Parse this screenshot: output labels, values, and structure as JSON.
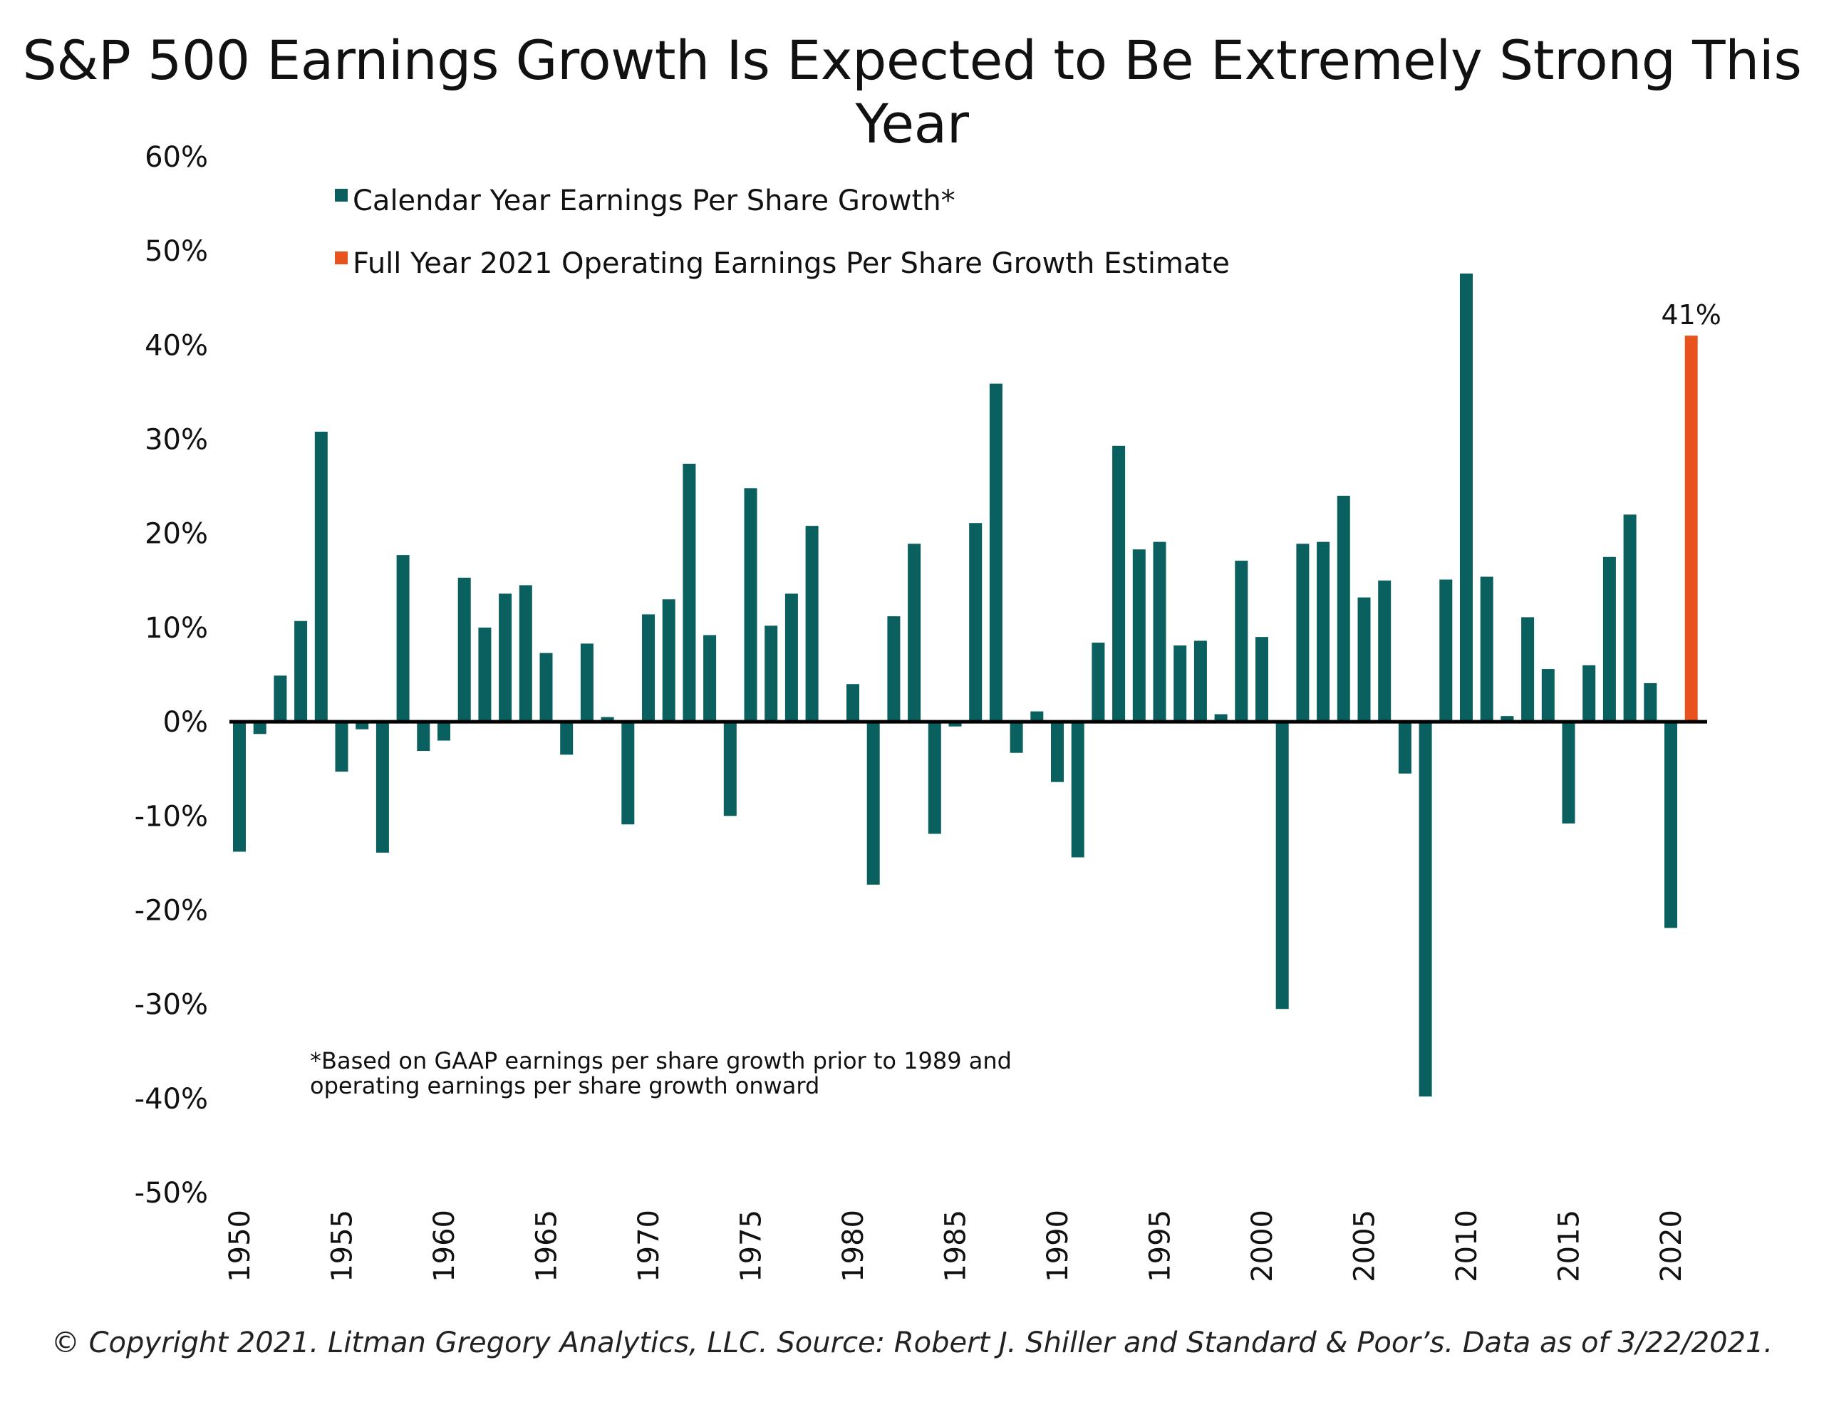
{
  "chart_data": {
    "type": "bar",
    "title": "S&P 500 Earnings Growth Is Expected to Be Extremely Strong This Year",
    "xlabel": "",
    "ylabel": "",
    "ylim": [
      -50,
      60
    ],
    "y_ticks": [
      60,
      50,
      40,
      30,
      20,
      10,
      0,
      -10,
      -20,
      -30,
      -40,
      -50
    ],
    "y_tick_labels": [
      "60%",
      "50%",
      "40%",
      "30%",
      "20%",
      "10%",
      "0%",
      "-10%",
      "-20%",
      "-30%",
      "-40%",
      "-50%"
    ],
    "x_tick_labels": [
      "1950",
      "1955",
      "1960",
      "1965",
      "1970",
      "1975",
      "1980",
      "1985",
      "1990",
      "1995",
      "2000",
      "2005",
      "2010",
      "2015",
      "2020"
    ],
    "grid": false,
    "legend_position": "top-left",
    "series": [
      {
        "name": "Calendar Year Earnings Per Share Growth*",
        "color": "#0a5f5f",
        "x": [
          1950,
          1951,
          1952,
          1953,
          1954,
          1955,
          1956,
          1957,
          1958,
          1959,
          1960,
          1961,
          1962,
          1963,
          1964,
          1965,
          1966,
          1967,
          1968,
          1969,
          1970,
          1971,
          1972,
          1973,
          1974,
          1975,
          1976,
          1977,
          1978,
          1979,
          1980,
          1981,
          1982,
          1983,
          1984,
          1985,
          1986,
          1987,
          1988,
          1989,
          1990,
          1991,
          1992,
          1993,
          1994,
          1995,
          1996,
          1997,
          1998,
          1999,
          2000,
          2001,
          2002,
          2003,
          2004,
          2005,
          2006,
          2007,
          2008,
          2009,
          2010,
          2011,
          2012,
          2013,
          2014,
          2015,
          2016,
          2017,
          2018,
          2019,
          2020
        ],
        "values": [
          -13.8,
          -1.3,
          4.9,
          10.7,
          30.8,
          -5.3,
          -0.8,
          -13.9,
          17.7,
          -3.1,
          -2.0,
          15.3,
          10.0,
          13.6,
          14.5,
          7.3,
          -3.5,
          8.3,
          0.5,
          -10.9,
          11.4,
          13.0,
          27.4,
          9.2,
          -10.0,
          24.8,
          10.2,
          13.6,
          20.8,
          0.1,
          4.0,
          -17.3,
          11.2,
          18.9,
          -11.9,
          -0.5,
          21.1,
          35.9,
          -3.3,
          1.1,
          -6.4,
          -14.4,
          8.4,
          29.3,
          18.3,
          19.1,
          8.1,
          8.6,
          0.8,
          17.1,
          9.0,
          -30.5,
          18.9,
          19.1,
          24.0,
          13.2,
          15.0,
          -5.5,
          -39.8,
          15.1,
          47.6,
          15.4,
          0.6,
          11.1,
          5.6,
          -10.8,
          6.0,
          17.5,
          22.0,
          4.1,
          -21.9
        ]
      },
      {
        "name": "Full Year 2021 Operating Earnings Per Share Growth Estimate",
        "color": "#e8521c",
        "x": [
          2021
        ],
        "values": [
          41
        ],
        "data_label": "41%"
      }
    ],
    "annotations": [
      "*Based on GAAP earnings per share growth prior to 1989 and",
      "operating earnings per share growth onward"
    ],
    "copyright": "© Copyright 2021. Litman Gregory Analytics, LLC. Source: Robert J. Shiller and Standard & Poor’s. Data as of 3/22/2021."
  }
}
